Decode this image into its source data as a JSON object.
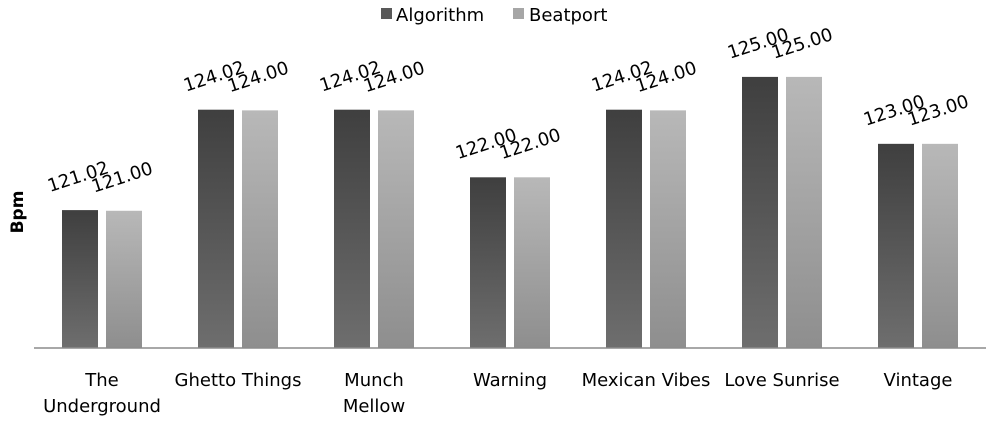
{
  "chart_data": {
    "type": "bar",
    "title": "",
    "xlabel": "",
    "ylabel": "Bpm",
    "ylim": [
      116.9,
      126.7
    ],
    "grid": false,
    "legend_position": "top-center",
    "categories": [
      "The Underground",
      "Ghetto Things",
      "Munch Mellow",
      "Warning",
      "Mexican Vibes",
      "Love Sunrise",
      "Vintage"
    ],
    "series": [
      {
        "name": "Algorithm",
        "color": "#595959",
        "values": [
          121.02,
          124.02,
          124.02,
          122.0,
          124.02,
          125.0,
          123.0
        ],
        "labels": [
          "121.02",
          "124.02",
          "124.02",
          "122.00",
          "124.02",
          "125.00",
          "123.00"
        ]
      },
      {
        "name": "Beatport",
        "color": "#a6a6a6",
        "values": [
          121.0,
          124.0,
          124.0,
          122.0,
          124.0,
          125.0,
          123.0
        ],
        "labels": [
          "121.00",
          "124.00",
          "124.00",
          "122.00",
          "124.00",
          "125.00",
          "123.00"
        ]
      }
    ]
  }
}
